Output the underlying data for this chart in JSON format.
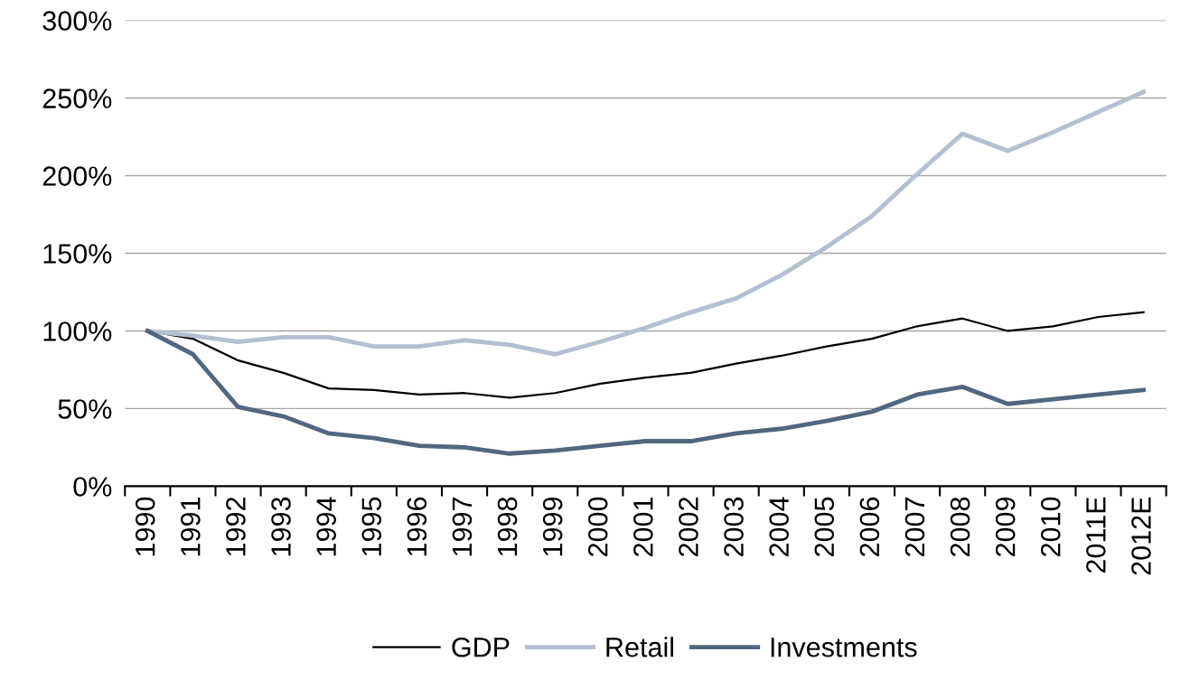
{
  "chart_data": {
    "type": "line",
    "categories": [
      "1990",
      "1991",
      "1992",
      "1993",
      "1994",
      "1995",
      "1996",
      "1997",
      "1998",
      "1999",
      "2000",
      "2001",
      "2002",
      "2003",
      "2004",
      "2005",
      "2006",
      "2007",
      "2008",
      "2009",
      "2010",
      "2011E",
      "2012E"
    ],
    "series": [
      {
        "name": "GDP",
        "color": "#000000",
        "values": [
          100,
          95,
          81,
          73,
          63,
          62,
          59,
          60,
          57,
          60,
          66,
          70,
          73,
          79,
          84,
          90,
          95,
          103,
          108,
          100,
          103,
          109,
          112
        ]
      },
      {
        "name": "Retail",
        "color": "#b4c0cf",
        "values": [
          100,
          97,
          93,
          96,
          96,
          90,
          90,
          94,
          91,
          85,
          93,
          102,
          112,
          121,
          136,
          154,
          174,
          201,
          227,
          216,
          228,
          241,
          254
        ]
      },
      {
        "name": "Investments",
        "color": "#51677f",
        "values": [
          100,
          85,
          51,
          45,
          34,
          31,
          26,
          25,
          21,
          23,
          26,
          29,
          29,
          34,
          37,
          42,
          48,
          59,
          64,
          53,
          56,
          59,
          62
        ]
      }
    ],
    "ylim": [
      0,
      300
    ],
    "yticks": [
      {
        "value": 0,
        "label": "0%"
      },
      {
        "value": 50,
        "label": "50%"
      },
      {
        "value": 100,
        "label": "100%"
      },
      {
        "value": 150,
        "label": "150%"
      },
      {
        "value": 200,
        "label": "200%"
      },
      {
        "value": 250,
        "label": "250%"
      },
      {
        "value": 300,
        "label": "300%"
      }
    ],
    "grid": "y",
    "legend": "bottom",
    "marker": "none",
    "line_style": "solid"
  }
}
